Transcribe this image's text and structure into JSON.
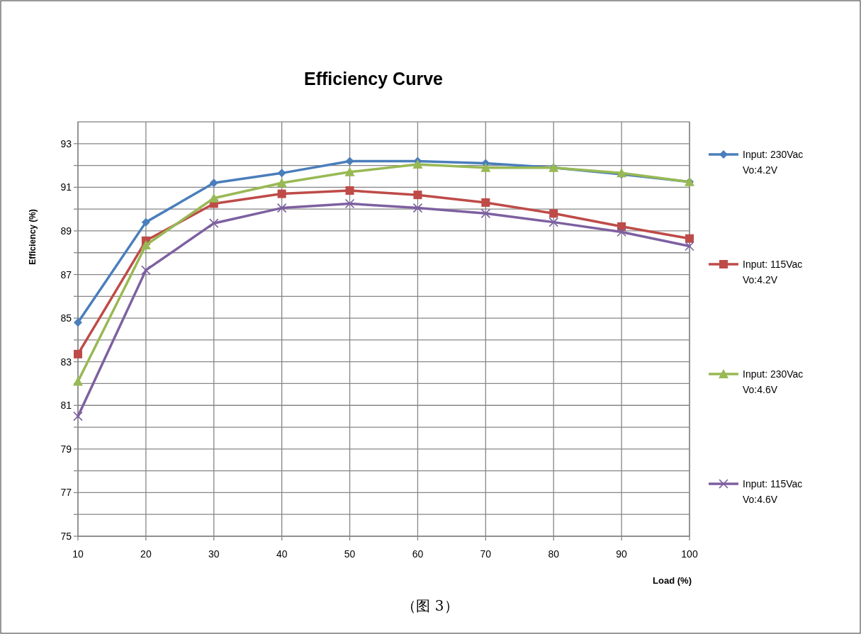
{
  "chart_data": {
    "type": "line",
    "title": "Efficiency Curve",
    "xlabel": "Load (%)",
    "ylabel": "Efficiency (%)",
    "x": [
      10,
      20,
      30,
      40,
      50,
      60,
      70,
      80,
      90,
      100
    ],
    "series": [
      {
        "name": "Input: 230Vac\nVo:4.2V",
        "color": "#4a7ebb",
        "marker": "diamond",
        "values": [
          84.8,
          89.4,
          91.2,
          91.65,
          92.2,
          92.2,
          92.1,
          91.9,
          91.6,
          91.25
        ]
      },
      {
        "name": "Input: 115Vac\nVo:4.2V",
        "color": "#be4b48",
        "marker": "square",
        "values": [
          83.35,
          88.55,
          90.25,
          90.7,
          90.85,
          90.65,
          90.3,
          89.8,
          89.2,
          88.65
        ]
      },
      {
        "name": "Input: 230Vac\nVo:4.6V",
        "color": "#98b954",
        "marker": "triangle",
        "values": [
          82.1,
          88.35,
          90.5,
          91.2,
          91.7,
          92.05,
          91.9,
          91.9,
          91.65,
          91.25
        ]
      },
      {
        "name": "Input: 115Vac\nVo:4.6V",
        "color": "#7d60a0",
        "marker": "cross",
        "values": [
          80.5,
          87.2,
          89.35,
          90.05,
          90.25,
          90.05,
          89.8,
          89.4,
          88.95,
          88.3
        ]
      }
    ],
    "xlim": [
      10,
      100
    ],
    "xticks": [
      10,
      20,
      30,
      40,
      50,
      60,
      70,
      80,
      90,
      100
    ],
    "ylim": [
      75,
      94
    ],
    "yticks": [
      75,
      {
        "value": 76,
        "label": null
      },
      77,
      {
        "value": 78,
        "label": null
      },
      79,
      {
        "value": 80,
        "label": null
      },
      81,
      {
        "value": 82,
        "label": null
      },
      83,
      {
        "value": 84,
        "label": null
      },
      85,
      {
        "value": 86,
        "label": null
      },
      87,
      {
        "value": 88,
        "label": null
      },
      89,
      {
        "value": 90,
        "label": null
      },
      91,
      {
        "value": 92,
        "label": null
      },
      93
    ],
    "grid": true,
    "legend": "right",
    "line_style": "solid",
    "annotations": [
      "（图 3）"
    ]
  }
}
